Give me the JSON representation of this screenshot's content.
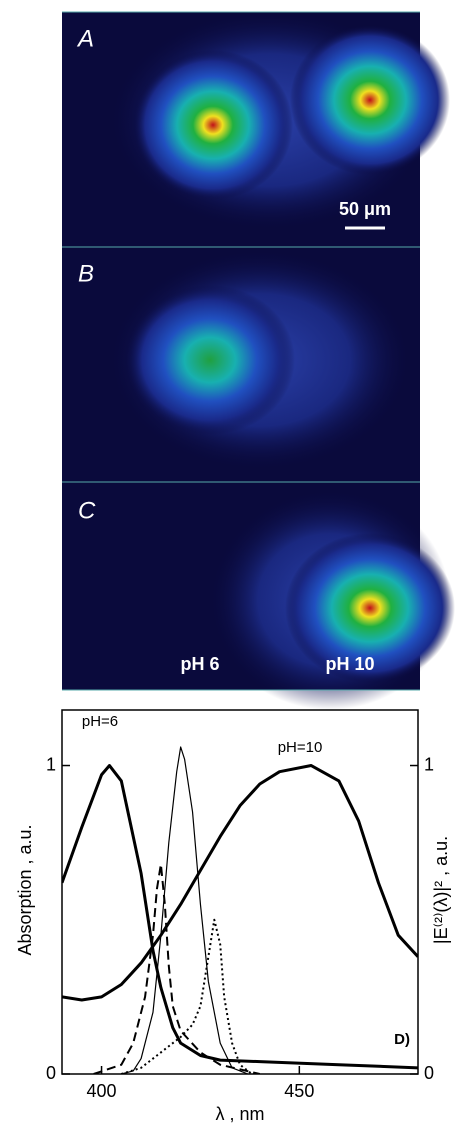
{
  "panels": [
    {
      "label": "A"
    },
    {
      "label": "B"
    },
    {
      "label": "C"
    }
  ],
  "scale_bar": "50 μm",
  "ph_labels": [
    "pH 6",
    "pH 10"
  ],
  "chart_data": {
    "type": "line",
    "xlabel": "λ , nm",
    "ylabel": "Absorption , a.u.",
    "y2label": "|E⁽²⁾(λ)|² , a.u.",
    "annotations": [
      "pH=6",
      "pH=10",
      "D)"
    ],
    "xlim": [
      390,
      480
    ],
    "xticks": [
      400,
      450
    ],
    "ylim": [
      0,
      1.18
    ],
    "yticks": [
      0,
      1
    ],
    "y2lim": [
      0,
      1.18
    ],
    "y2ticks": [
      0,
      1
    ],
    "series": [
      {
        "color": "#000000",
        "width": 3,
        "dash": "solid",
        "x": [
          390,
          395,
          400,
          402,
          405,
          410,
          413,
          415,
          418,
          420,
          425,
          430,
          440,
          460,
          480
        ],
        "values": [
          0.62,
          0.8,
          0.97,
          1.0,
          0.95,
          0.65,
          0.4,
          0.28,
          0.15,
          0.1,
          0.06,
          0.045,
          0.04,
          0.03,
          0.02
        ]
      },
      {
        "color": "#000000",
        "width": 3,
        "dash": "solid",
        "x": [
          390,
          395,
          400,
          405,
          410,
          415,
          420,
          425,
          430,
          435,
          440,
          445,
          453,
          460,
          465,
          470,
          475,
          480
        ],
        "values": [
          0.25,
          0.24,
          0.25,
          0.29,
          0.36,
          0.45,
          0.55,
          0.66,
          0.77,
          0.87,
          0.94,
          0.98,
          1.0,
          0.95,
          0.82,
          0.62,
          0.45,
          0.38
        ]
      },
      {
        "color": "#000000",
        "width": 1.2,
        "dash": "solid",
        "axis": "y2",
        "x": [
          405,
          408,
          410,
          413,
          415,
          417,
          419,
          420,
          421,
          423,
          425,
          427,
          430,
          433,
          437
        ],
        "values": [
          0,
          0.01,
          0.05,
          0.2,
          0.45,
          0.75,
          0.98,
          1.06,
          1.02,
          0.85,
          0.55,
          0.3,
          0.1,
          0.02,
          0
        ]
      },
      {
        "color": "#000000",
        "width": 2,
        "dash": "dashed",
        "axis": "y2",
        "x": [
          398,
          405,
          408,
          411,
          413,
          414,
          415,
          416,
          417,
          418,
          420,
          425,
          430,
          440
        ],
        "values": [
          0,
          0.03,
          0.1,
          0.25,
          0.45,
          0.6,
          0.68,
          0.55,
          0.35,
          0.22,
          0.14,
          0.07,
          0.03,
          0
        ]
      },
      {
        "color": "#000000",
        "width": 2,
        "dash": "dotted",
        "axis": "y2",
        "x": [
          405,
          410,
          415,
          420,
          423,
          425,
          427,
          428.5,
          430,
          431,
          433,
          435,
          438
        ],
        "values": [
          0,
          0.02,
          0.07,
          0.12,
          0.16,
          0.22,
          0.38,
          0.5,
          0.42,
          0.25,
          0.1,
          0.03,
          0
        ]
      }
    ]
  }
}
